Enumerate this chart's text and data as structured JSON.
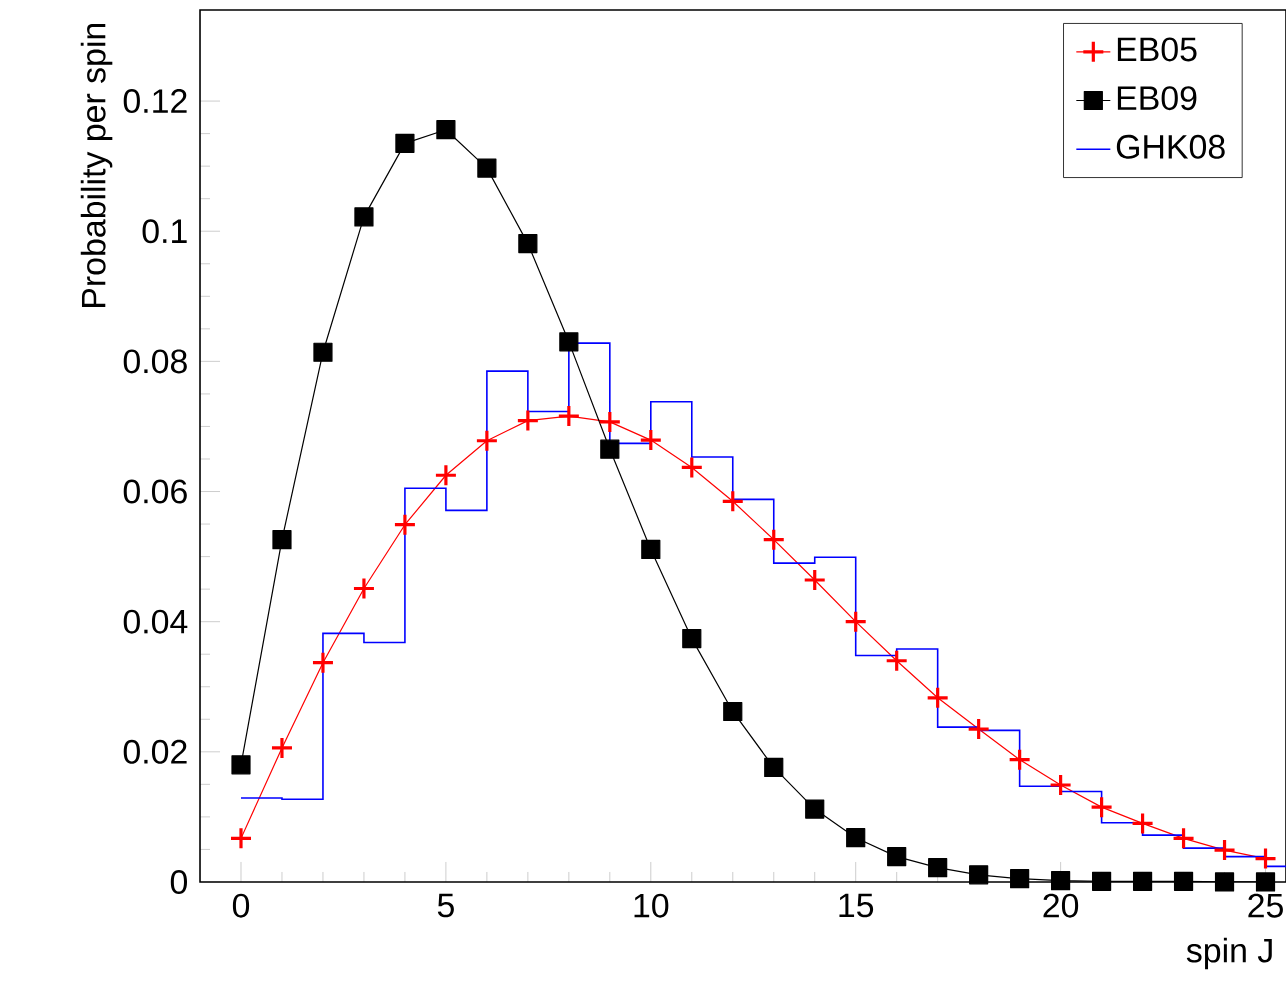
{
  "chart_data": {
    "type": "line",
    "xlabel": "spin J",
    "ylabel": "Probability per spin",
    "xlim": [
      -1,
      25.5
    ],
    "ylim": [
      0,
      0.134
    ],
    "xticks": [
      0,
      5,
      10,
      15,
      20,
      25
    ],
    "yticks": [
      0,
      0.02,
      0.04,
      0.06,
      0.08,
      0.1,
      0.12
    ],
    "grid": false,
    "legend": "top right",
    "x": [
      0,
      1,
      2,
      3,
      4,
      5,
      6,
      7,
      8,
      9,
      10,
      11,
      12,
      13,
      14,
      15,
      16,
      17,
      18,
      19,
      20,
      21,
      22,
      23,
      24,
      25
    ],
    "series": [
      {
        "name": "EB05",
        "color": "#ff0000",
        "marker": "cross",
        "values": [
          0.0067,
          0.0206,
          0.0337,
          0.0451,
          0.0549,
          0.0625,
          0.0678,
          0.0709,
          0.0716,
          0.0707,
          0.0679,
          0.0637,
          0.0585,
          0.0526,
          0.0464,
          0.04,
          0.034,
          0.0283,
          0.0235,
          0.0188,
          0.0149,
          0.0115,
          0.009,
          0.0067,
          0.0049,
          0.0036
        ]
      },
      {
        "name": "EB09",
        "color": "#000000",
        "marker": "square",
        "values": [
          0.018,
          0.0526,
          0.0814,
          0.1022,
          0.1135,
          0.1156,
          0.1097,
          0.0981,
          0.083,
          0.0665,
          0.0511,
          0.0374,
          0.0262,
          0.0176,
          0.0112,
          0.0068,
          0.0039,
          0.0022,
          0.0011,
          0.0005,
          0.0002,
          0.0001,
          0.0001,
          0.0001,
          0,
          0
        ]
      },
      {
        "name": "GHK08",
        "color": "#0000ff",
        "type": "histogram",
        "marker": "none",
        "bins": [
          0,
          1,
          2,
          3,
          4,
          5,
          6,
          7,
          8,
          9,
          10,
          11,
          12,
          13,
          14,
          15,
          16,
          17,
          18,
          19,
          20,
          21,
          22,
          23,
          24,
          25,
          26
        ],
        "values": [
          0.0129,
          0.0127,
          0.0382,
          0.0368,
          0.0605,
          0.0571,
          0.0785,
          0.0723,
          0.0828,
          0.0674,
          0.0738,
          0.0653,
          0.0588,
          0.049,
          0.0499,
          0.0348,
          0.0358,
          0.0238,
          0.0233,
          0.0147,
          0.0139,
          0.0091,
          0.0072,
          0.0052,
          0.0039,
          0.0024
        ]
      }
    ]
  }
}
